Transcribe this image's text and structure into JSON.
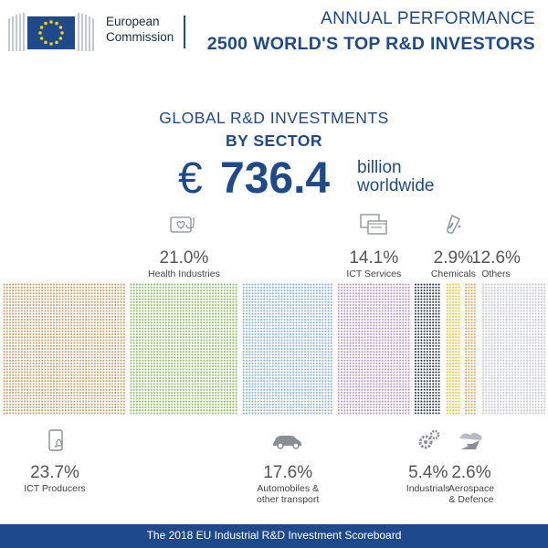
{
  "header": {
    "logo_line1": "European",
    "logo_line2": "Commission",
    "title_line1": "ANNUAL PERFORMANCE",
    "title_line2": "2500 WORLD'S TOP R&D INVESTORS"
  },
  "main": {
    "title_line1": "GLOBAL R&D INVESTMENTS",
    "title_line2": "BY SECTOR",
    "total_symbol": "€",
    "total_value": "736.4",
    "total_unit_line1": "billion",
    "total_unit_line2": "worldwide"
  },
  "chart_data": {
    "type": "bar",
    "title": "GLOBAL R&D INVESTMENTS BY SECTOR",
    "unit": "%",
    "categories": [
      "ICT Producers",
      "Health Industries",
      "Automobiles & other transport",
      "ICT Services",
      "Industrials",
      "Chemicals",
      "Aerospace & Defence",
      "Others"
    ],
    "values": [
      23.7,
      21.0,
      17.6,
      14.1,
      5.4,
      2.9,
      2.6,
      12.6
    ],
    "labels": [
      "23.7%",
      "21.0%",
      "17.6%",
      "14.1%",
      "5.4%",
      "2.9%",
      "2.6%",
      "12.6%"
    ],
    "colors": [
      "#c9a270",
      "#92bf6a",
      "#8fb5de",
      "#b99acd",
      "#33404f",
      "#eec43a",
      "#e3a65a",
      "#c7c9cc"
    ],
    "label_positions": [
      "below",
      "above",
      "below",
      "above",
      "below",
      "above",
      "below",
      "above"
    ],
    "label_lines": [
      [
        "ICT Producers"
      ],
      [
        "Health Industries"
      ],
      [
        "Automobiles &",
        "other transport"
      ],
      [
        "ICT Services"
      ],
      [
        "Industrials"
      ],
      [
        "Chemicals"
      ],
      [
        "Aerospace",
        "& Defence"
      ],
      [
        "Others"
      ]
    ],
    "icons": [
      "tablet-icon",
      "health-icon",
      "car-icon",
      "browser-windows-icon",
      "gears-icon",
      "test-tube-icon",
      "plane-icon",
      ""
    ]
  },
  "footer": {
    "text": "The 2018 EU Industrial R&D Investment Scoreboard"
  }
}
